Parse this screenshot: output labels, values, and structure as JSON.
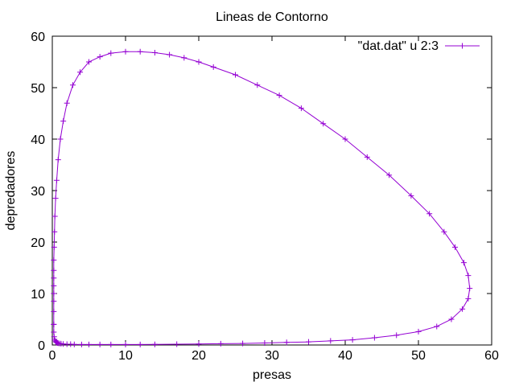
{
  "chart_data": {
    "type": "line",
    "title": "Lineas de Contorno",
    "xlabel": "presas",
    "ylabel": "depredadores",
    "xlim": [
      0,
      60
    ],
    "ylim": [
      0,
      60
    ],
    "xticks": [
      "0",
      "10",
      "20",
      "30",
      "40",
      "50",
      "60"
    ],
    "yticks": [
      "0",
      "10",
      "20",
      "30",
      "40",
      "50",
      "60"
    ],
    "grid": false,
    "legend_position": "top-right",
    "color": "#9400d3",
    "marker": "plus",
    "series": [
      {
        "name": "\"dat.dat\" u 2:3",
        "x": [
          0.2,
          0.2,
          0.25,
          0.3,
          0.4,
          0.5,
          0.6,
          0.7,
          0.8,
          1.0,
          1.2,
          1.5,
          2.0,
          2.5,
          3.0,
          4.0,
          5.0,
          6.5,
          8.0,
          10.0,
          12.0,
          14.0,
          17.0,
          20.0,
          23.0,
          26.0,
          29.0,
          32.0,
          35.0,
          38.0,
          41.0,
          44.0,
          47.0,
          50.0,
          52.5,
          54.5,
          56.0,
          56.8,
          57.0,
          56.8,
          56.2,
          55.0,
          53.5,
          51.5,
          49.0,
          46.0,
          43.0,
          40.0,
          37.0,
          34.0,
          31.0,
          28.0,
          25.0,
          22.0,
          20.0,
          18.0,
          16.0,
          14.0,
          12.0,
          10.0,
          8.0,
          6.5,
          5.0,
          3.8,
          2.8,
          2.0,
          1.5,
          1.1,
          0.8,
          0.6,
          0.45,
          0.35,
          0.3,
          0.25,
          0.2,
          0.2,
          0.2,
          0.2,
          0.2,
          0.2,
          0.2,
          0.2
        ],
        "y": [
          4.0,
          2.5,
          1.6,
          1.1,
          0.8,
          0.6,
          0.5,
          0.4,
          0.35,
          0.3,
          0.25,
          0.2,
          0.15,
          0.15,
          0.12,
          0.1,
          0.1,
          0.1,
          0.1,
          0.1,
          0.1,
          0.12,
          0.15,
          0.2,
          0.25,
          0.3,
          0.4,
          0.5,
          0.6,
          0.8,
          1.0,
          1.4,
          1.9,
          2.6,
          3.6,
          5.0,
          7.0,
          9.0,
          11.0,
          13.5,
          16.0,
          19.0,
          22.0,
          25.5,
          29.0,
          33.0,
          36.5,
          40.0,
          43.0,
          46.0,
          48.5,
          50.5,
          52.5,
          54.0,
          55.0,
          55.8,
          56.4,
          56.8,
          57.0,
          57.0,
          56.7,
          56.0,
          55.0,
          53.0,
          50.5,
          47.0,
          43.5,
          40.0,
          36.0,
          32.0,
          28.5,
          25.0,
          22.0,
          19.0,
          16.5,
          14.5,
          13.0,
          11.5,
          10.0,
          8.5,
          6.5,
          4.0
        ]
      }
    ]
  }
}
